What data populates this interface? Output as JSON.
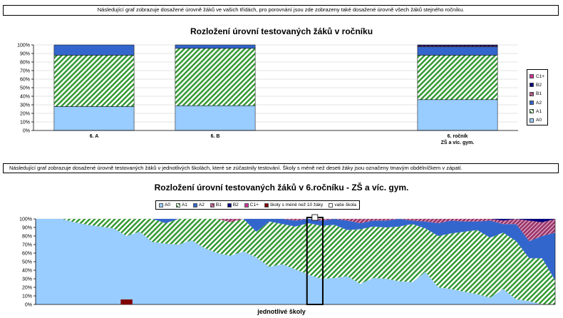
{
  "note_top": "Následující graf zobrazuje dosažené úrovně žáků ve vašich třídách, pro porovnání jsou zde zobrazeny také dosažené úrovně všech žáků stejného ročníku.",
  "note_bottom": "Následující graf zobrazuje dosažené úrovně testovaných žáků v jednotlivých školách, které se zúčastnily testování. Školy s méně než deseti žáky jsou označeny tmavým obdélníčkem v zápatí.",
  "colors": {
    "A0": "#99ccff",
    "A1": "#339933",
    "A2": "#3366cc",
    "B1": "#993366",
    "B2": "#000080",
    "C1+": "#cc3399",
    "small_school": "#800000",
    "your_school": "#ffffff"
  },
  "chart_data": [
    {
      "type": "bar",
      "stacked": true,
      "title": "Rozložení úrovní testovaných žáků v ročníku",
      "categories": [
        "6. A",
        "6. B",
        "",
        "6. ročník ZŠ a víc. gym."
      ],
      "yticks": [
        "0%",
        "10%",
        "20%",
        "30%",
        "40%",
        "50%",
        "60%",
        "70%",
        "80%",
        "90%",
        "100%"
      ],
      "ylim": [
        0,
        100
      ],
      "legend": "right",
      "series": [
        {
          "name": "A0",
          "values": [
            28,
            29,
            null,
            36
          ]
        },
        {
          "name": "A1",
          "values": [
            60,
            67,
            null,
            52
          ]
        },
        {
          "name": "A2",
          "values": [
            12,
            4,
            null,
            10
          ]
        },
        {
          "name": "B1",
          "values": [
            0,
            0,
            null,
            1
          ]
        },
        {
          "name": "B2",
          "values": [
            0,
            0,
            null,
            1
          ]
        },
        {
          "name": "C1+",
          "values": [
            0,
            0,
            null,
            0
          ]
        }
      ],
      "legend_order": [
        "C1+",
        "B2",
        "B1",
        "A2",
        "A1",
        "A0"
      ]
    },
    {
      "type": "area",
      "stacked": true,
      "title": "Rozložení úrovní testovaných žáků v 6.ročníku - ZŠ a víc. gym.",
      "xlabel": "jednotlivé školy",
      "yticks": [
        "0%",
        "10%",
        "20%",
        "30%",
        "40%",
        "50%",
        "60%",
        "70%",
        "80%",
        "90%",
        "100%"
      ],
      "ylim": [
        0,
        100
      ],
      "legend": "top",
      "legend_items": [
        "A0",
        "A1",
        "A2",
        "B1",
        "B2",
        "C1+",
        "školy s méně než 10 žáky",
        "vaše škola"
      ],
      "schools": [
        {
          "A0": 100,
          "A1": 0,
          "A2": 0,
          "B1": 0,
          "B2": 0
        },
        {
          "A0": 100,
          "A1": 0,
          "A2": 0,
          "B1": 0,
          "B2": 0
        },
        {
          "A0": 100,
          "A1": 0,
          "A2": 0,
          "B1": 0,
          "B2": 0
        },
        {
          "A0": 96,
          "A1": 4,
          "A2": 0,
          "B1": 0,
          "B2": 0
        },
        {
          "A0": 93,
          "A1": 7,
          "A2": 0,
          "B1": 0,
          "B2": 0
        },
        {
          "A0": 91,
          "A1": 9,
          "A2": 0,
          "B1": 0,
          "B2": 0
        },
        {
          "A0": 89,
          "A1": 11,
          "A2": 0,
          "B1": 0,
          "B2": 0
        },
        {
          "A0": 80,
          "A1": 20,
          "A2": 0,
          "B1": 0,
          "B2": 0
        },
        {
          "A0": 85,
          "A1": 15,
          "A2": 0,
          "B1": 0,
          "B2": 0
        },
        {
          "A0": 73,
          "A1": 27,
          "A2": 0,
          "B1": 0,
          "B2": 0
        },
        {
          "A0": 71,
          "A1": 24,
          "A2": 5,
          "B1": 0,
          "B2": 0
        },
        {
          "A0": 70,
          "A1": 30,
          "A2": 0,
          "B1": 0,
          "B2": 0
        },
        {
          "A0": 75,
          "A1": 25,
          "A2": 0,
          "B1": 0,
          "B2": 0
        },
        {
          "A0": 66,
          "A1": 34,
          "A2": 0,
          "B1": 0,
          "B2": 0
        },
        {
          "A0": 60,
          "A1": 40,
          "A2": 0,
          "B1": 0,
          "B2": 0
        },
        {
          "A0": 57,
          "A1": 39,
          "A2": 0,
          "B1": 4,
          "B2": 0
        },
        {
          "A0": 62,
          "A1": 38,
          "A2": 0,
          "B1": 0,
          "B2": 0
        },
        {
          "A0": 55,
          "A1": 30,
          "A2": 15,
          "B1": 0,
          "B2": 0
        },
        {
          "A0": 44,
          "A1": 53,
          "A2": 3,
          "B1": 0,
          "B2": 0
        },
        {
          "A0": 47,
          "A1": 47,
          "A2": 6,
          "B1": 0,
          "B2": 0
        },
        {
          "A0": 41,
          "A1": 50,
          "A2": 7,
          "B1": 2,
          "B2": 0
        },
        {
          "A0": 35,
          "A1": 60,
          "A2": 5,
          "B1": 0,
          "B2": 0
        },
        {
          "A0": 30,
          "A1": 62,
          "A2": 6,
          "B1": 2,
          "B2": 0
        },
        {
          "A0": 31,
          "A1": 62,
          "A2": 7,
          "B1": 0,
          "B2": 0
        },
        {
          "A0": 33,
          "A1": 54,
          "A2": 11,
          "B1": 2,
          "B2": 0
        },
        {
          "A0": 24,
          "A1": 64,
          "A2": 7,
          "B1": 5,
          "B2": 0
        },
        {
          "A0": 31,
          "A1": 60,
          "A2": 7,
          "B1": 2,
          "B2": 0
        },
        {
          "A0": 30,
          "A1": 60,
          "A2": 8,
          "B1": 2,
          "B2": 0
        },
        {
          "A0": 27,
          "A1": 64,
          "A2": 9,
          "B1": 0,
          "B2": 0
        },
        {
          "A0": 26,
          "A1": 68,
          "A2": 4,
          "B1": 2,
          "B2": 0
        },
        {
          "A0": 38,
          "A1": 51,
          "A2": 8,
          "B1": 3,
          "B2": 0
        },
        {
          "A0": 20,
          "A1": 60,
          "A2": 15,
          "B1": 5,
          "B2": 0
        },
        {
          "A0": 18,
          "A1": 65,
          "A2": 15,
          "B1": 2,
          "B2": 0
        },
        {
          "A0": 15,
          "A1": 70,
          "A2": 12,
          "B1": 3,
          "B2": 0
        },
        {
          "A0": 12,
          "A1": 75,
          "A2": 10,
          "B1": 3,
          "B2": 0
        },
        {
          "A0": 8,
          "A1": 70,
          "A2": 20,
          "B1": 2,
          "B2": 0
        },
        {
          "A0": 18,
          "A1": 66,
          "A2": 10,
          "B1": 4,
          "B2": 2
        },
        {
          "A0": 6,
          "A1": 68,
          "A2": 20,
          "B1": 6,
          "B2": 0
        },
        {
          "A0": 4,
          "A1": 50,
          "A2": 20,
          "B1": 24,
          "B2": 2
        },
        {
          "A0": 0,
          "A1": 54,
          "A2": 26,
          "B1": 16,
          "B2": 4
        },
        {
          "A0": 0,
          "A1": 28,
          "A2": 56,
          "B1": 16,
          "B2": 0
        }
      ],
      "small_school_index": 7,
      "your_school_index": 21
    }
  ]
}
